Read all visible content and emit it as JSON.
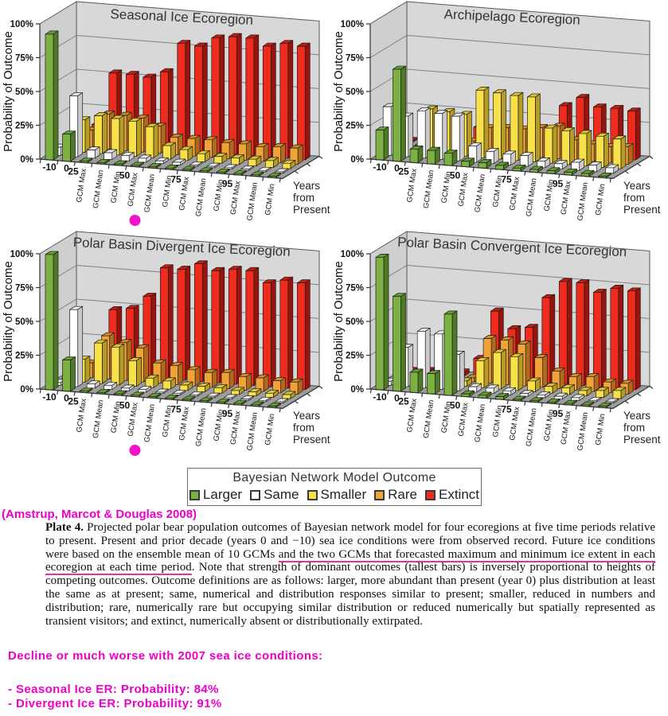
{
  "colors": {
    "magenta": "#ee00cc",
    "magenta_dot": "#f312c9",
    "underline": "#e8309c",
    "wall": "#d8d8d8",
    "side_wall": "#cfcfcf",
    "floor": "#9d9d9d",
    "grid": "#808080",
    "series_face": [
      "#7CB142",
      "#FFFFFF",
      "#F7E04A",
      "#F2A338",
      "#EE2B1C"
    ],
    "series_side": [
      "#4E7A26",
      "#C9C9C9",
      "#B69B24",
      "#B06A1B",
      "#99140D"
    ],
    "series_top": [
      "#659C33",
      "#E9E9E9",
      "#DCC437",
      "#D58A29",
      "#C01E14"
    ]
  },
  "legend": {
    "title": "Bayesian Network Model Outcome",
    "items": [
      {
        "label": "Larger",
        "color": "#7CB142"
      },
      {
        "label": "Same",
        "color": "#FFFFFF"
      },
      {
        "label": "Smaller",
        "color": "#F7E04A"
      },
      {
        "label": "Rare",
        "color": "#F2A338"
      },
      {
        "label": "Extinct",
        "color": "#EE2B1C"
      }
    ]
  },
  "axes": {
    "y_label": "Probability of Outcome",
    "y_ticks": [
      "0%",
      "25%",
      "50%",
      "75%",
      "100%"
    ],
    "x_label_lines": [
      "Years",
      "from",
      "Present"
    ],
    "period_labels": [
      "-10",
      "0",
      "25",
      "50",
      "75",
      "95"
    ],
    "gcm_labels": [
      "GCM Max",
      "GCM Mean",
      "GCM Min"
    ]
  },
  "chart_data": [
    {
      "type": "bar",
      "title": "Seasonal Ice Ecoregion",
      "ylabel": "Probability of Outcome",
      "ylim": [
        0,
        100
      ],
      "legend_position": "bottom-shared",
      "grid": true,
      "dot_marker": true,
      "categories": [
        "-10",
        "0",
        "25 GCM Max",
        "25 GCM Mean",
        "25 GCM Min",
        "50 GCM Max",
        "50 GCM Mean",
        "50 GCM Min",
        "75 GCM Max",
        "75 GCM Mean",
        "75 GCM Min",
        "95 GCM Max",
        "95 GCM Mean",
        "95 GCM Min"
      ],
      "series": [
        {
          "name": "Larger",
          "values": [
            93,
            20,
            1,
            1,
            1,
            1,
            1,
            1,
            1,
            1,
            1,
            1,
            1,
            1
          ]
        },
        {
          "name": "Same",
          "values": [
            6,
            45,
            6,
            5,
            4,
            3,
            2,
            2,
            1,
            1,
            1,
            1,
            1,
            1
          ]
        },
        {
          "name": "Smaller",
          "values": [
            1,
            24,
            28,
            27,
            26,
            23,
            10,
            8,
            6,
            5,
            5,
            5,
            5,
            4
          ]
        },
        {
          "name": "Rare",
          "values": [
            0,
            13,
            26,
            26,
            25,
            20,
            13,
            13,
            13,
            12,
            12,
            11,
            12,
            12
          ]
        },
        {
          "name": "Extinct",
          "values": [
            0,
            14,
            53,
            53,
            52,
            57,
            79,
            78,
            85,
            87,
            87,
            82,
            85,
            84
          ]
        }
      ]
    },
    {
      "type": "bar",
      "title": "Archipelago Ecoregion",
      "ylabel": "Probability of Outcome",
      "ylim": [
        0,
        100
      ],
      "legend_position": "bottom-shared",
      "grid": true,
      "dot_marker": false,
      "categories": [
        "-10",
        "0",
        "25 GCM Max",
        "25 GCM Mean",
        "25 GCM Min",
        "50 GCM Max",
        "50 GCM Mean",
        "50 GCM Min",
        "75 GCM Max",
        "75 GCM Mean",
        "75 GCM Min",
        "95 GCM Max",
        "95 GCM Mean",
        "95 GCM Min"
      ],
      "series": [
        {
          "name": "Larger",
          "values": [
            22,
            68,
            10,
            10,
            9,
            4,
            4,
            3,
            2,
            2,
            2,
            2,
            2,
            1
          ]
        },
        {
          "name": "Same",
          "values": [
            36,
            30,
            35,
            34,
            33,
            12,
            9,
            8,
            8,
            5,
            4,
            6,
            5,
            4
          ]
        },
        {
          "name": "Smaller",
          "values": [
            1,
            2,
            33,
            32,
            31,
            50,
            49,
            48,
            48,
            26,
            25,
            24,
            23,
            22
          ]
        },
        {
          "name": "Rare",
          "values": [
            1,
            2,
            2,
            2,
            8,
            19,
            20,
            20,
            22,
            24,
            15,
            13,
            12,
            13
          ]
        },
        {
          "name": "Extinct",
          "values": [
            1,
            6,
            2,
            2,
            15,
            8,
            9,
            12,
            12,
            36,
            43,
            37,
            37,
            36
          ]
        }
      ]
    },
    {
      "type": "bar",
      "title": "Polar Basin Divergent Ice Ecoregion",
      "ylabel": "Probability of Outcome",
      "ylim": [
        0,
        100
      ],
      "legend_position": "bottom-shared",
      "grid": true,
      "dot_marker": true,
      "categories": [
        "-10",
        "0",
        "25 GCM Max",
        "25 GCM Mean",
        "25 GCM Min",
        "50 GCM Max",
        "50 GCM Mean",
        "50 GCM Min",
        "75 GCM Max",
        "75 GCM Mean",
        "75 GCM Min",
        "95 GCM Max",
        "95 GCM Mean",
        "95 GCM Min"
      ],
      "series": [
        {
          "name": "Larger",
          "values": [
            100,
            23,
            1,
            1,
            1,
            1,
            1,
            1,
            1,
            1,
            1,
            1,
            1,
            1
          ]
        },
        {
          "name": "Same",
          "values": [
            2,
            57,
            3,
            3,
            2,
            2,
            1,
            1,
            1,
            1,
            1,
            1,
            1,
            1
          ]
        },
        {
          "name": "Smaller",
          "values": [
            0,
            17,
            30,
            28,
            19,
            7,
            6,
            4,
            4,
            4,
            3,
            3,
            3,
            3
          ]
        },
        {
          "name": "Rare",
          "values": [
            0,
            11,
            32,
            28,
            25,
            15,
            14,
            12,
            11,
            12,
            10,
            10,
            9,
            9
          ]
        },
        {
          "name": "Extinct",
          "values": [
            0,
            4,
            48,
            50,
            60,
            82,
            82,
            87,
            83,
            85,
            85,
            77,
            80,
            79
          ]
        }
      ]
    },
    {
      "type": "bar",
      "title": "Polar Basin Convergent Ice Ecoregion",
      "ylabel": "Probability of Outcome",
      "ylim": [
        0,
        100
      ],
      "legend_position": "bottom-shared",
      "grid": true,
      "dot_marker": false,
      "categories": [
        "-10",
        "0",
        "25 GCM Max",
        "25 GCM Mean",
        "25 GCM Min",
        "50 GCM Max",
        "50 GCM Mean",
        "50 GCM Min",
        "75 GCM Max",
        "75 GCM Mean",
        "75 GCM Min",
        "95 GCM Max",
        "95 GCM Mean",
        "95 GCM Min"
      ],
      "series": [
        {
          "name": "Larger",
          "values": [
            98,
            70,
            15,
            15,
            60,
            2,
            2,
            2,
            1,
            1,
            1,
            1,
            1,
            1
          ]
        },
        {
          "name": "Same",
          "values": [
            3,
            29,
            42,
            41,
            27,
            4,
            4,
            3,
            2,
            2,
            2,
            2,
            1,
            1
          ]
        },
        {
          "name": "Smaller",
          "values": [
            1,
            1,
            3,
            28,
            4,
            20,
            27,
            25,
            8,
            5,
            5,
            4,
            5,
            6
          ]
        },
        {
          "name": "Rare",
          "values": [
            1,
            1,
            2,
            3,
            3,
            33,
            33,
            31,
            22,
            13,
            10,
            11,
            8,
            8
          ]
        },
        {
          "name": "Extinct",
          "values": [
            1,
            2,
            2,
            3,
            14,
            50,
            38,
            40,
            63,
            76,
            76,
            70,
            74,
            73
          ]
        }
      ]
    }
  ],
  "attribution": "(Amstrup, Marcot & Douglas 2008)",
  "caption": {
    "plate_label": "Plate 4.",
    "part1": " Projected polar bear population outcomes of Bayesian network model for four ecoregions at five time periods relative to present. Present and prior decade (years 0 and −10) sea ice conditions were from observed record. Future ice conditions were based on the ensemble mean of 10 GCMs ",
    "underlined": "and the two GCMs that forecasted maximum and minimum ice extent in each ecoregion at each time period",
    "part2": ". Note that strength of dominant outcomes (tallest bars) is inversely proportional to heights of competing outcomes. Outcome definitions are as follows: larger, more abundant than present (year 0) plus distribution at least the same as at present; same, numerical and distribution responses similar to present; smaller, reduced in numbers and distribution; rare, numerically rare but occupying similar distribution or reduced numerically but spatially represented as transient visitors; and extinct, numerically absent or distributionally extirpated."
  },
  "highlight": {
    "heading": "Decline or much worse with 2007 sea ice conditions:",
    "items": [
      "- Seasonal Ice ER: Probability: 84%",
      "- Divergent Ice ER: Probability: 91%"
    ]
  }
}
